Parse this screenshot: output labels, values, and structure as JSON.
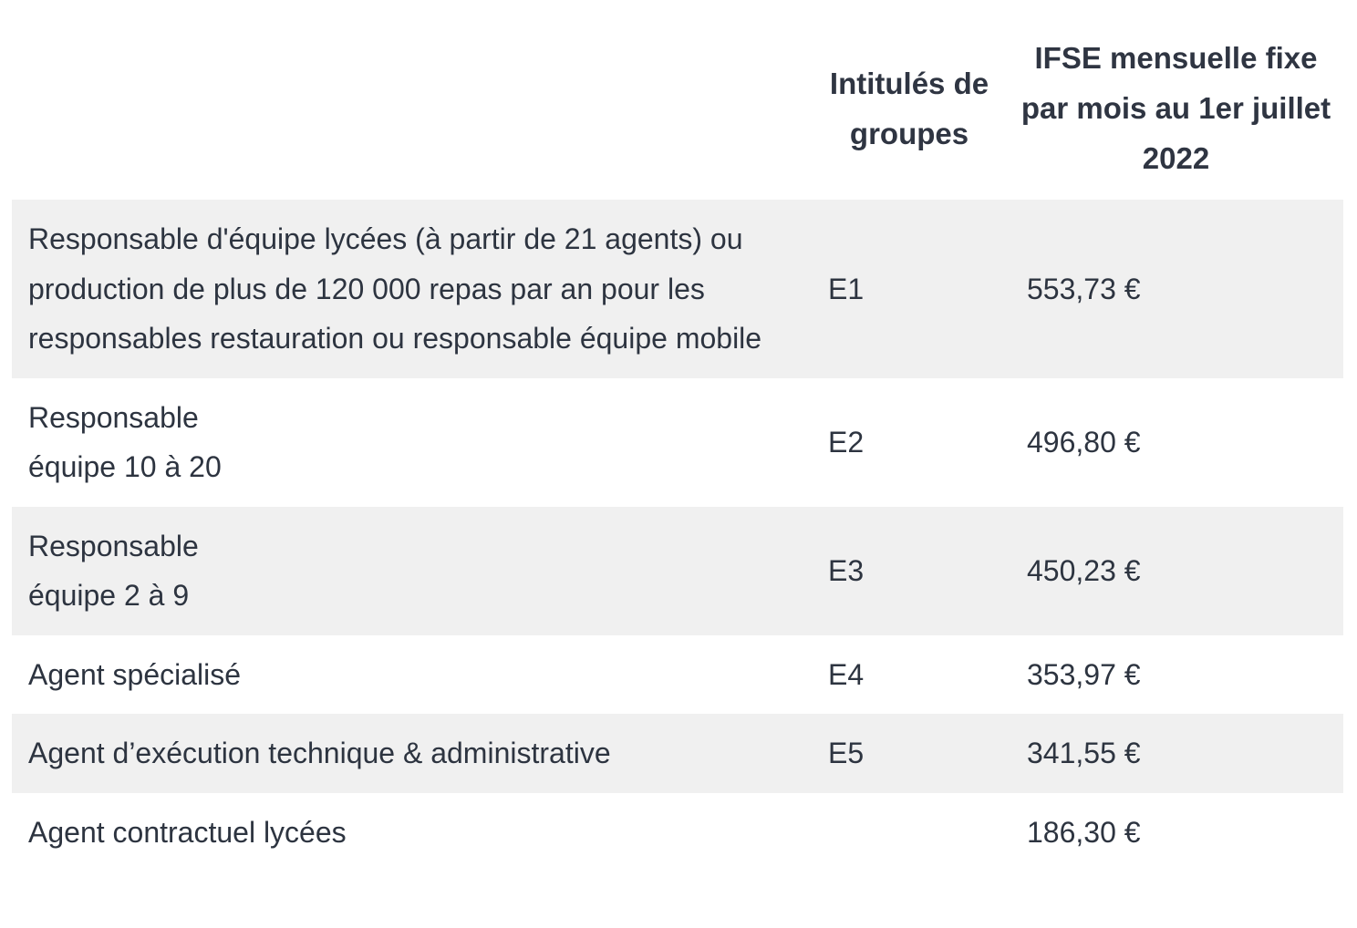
{
  "table": {
    "headers": {
      "description": "",
      "group": "Intitulés de groupes",
      "amount": "IFSE mensuelle fixe par mois au 1er juillet 2022"
    },
    "rows": [
      {
        "description": "Responsable d'équipe lycées (à partir de 21 agents) ou production de plus de 120 000 repas par an pour les responsables restauration ou responsable équipe mobile",
        "group": "E1",
        "amount": "553,73 €"
      },
      {
        "description_line1": "Responsable",
        "description_line2": "équipe 10 à 20",
        "group": "E2",
        "amount": "496,80 €"
      },
      {
        "description_line1": "Responsable",
        "description_line2": "équipe 2 à 9",
        "group": "E3",
        "amount": "450,23 €"
      },
      {
        "description": "Agent spécialisé",
        "group": "E4",
        "amount": "353,97 €"
      },
      {
        "description": "Agent d’exécution technique & administrative",
        "group": "E5",
        "amount": "341,55 €"
      },
      {
        "description": "Agent contractuel lycées",
        "group": "",
        "amount": "186,30 €"
      }
    ]
  }
}
